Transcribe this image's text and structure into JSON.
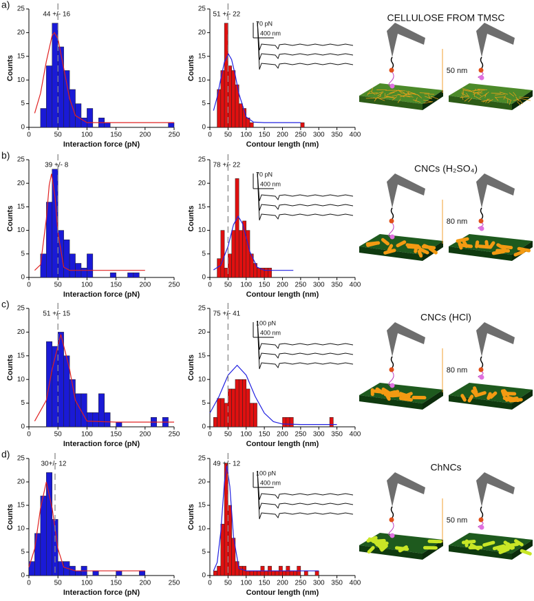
{
  "chart_data": [
    {
      "type": "histogram",
      "ylabel": "Counts",
      "xlabel": "Interaction force (pN)",
      "annotation": "44 +/- 16",
      "color": "#1a1ad6",
      "bins": [
        20,
        30,
        40,
        50,
        60,
        70,
        80,
        90,
        100,
        110,
        120,
        130,
        140,
        150,
        160,
        170,
        180,
        190,
        200,
        210,
        220,
        230,
        240,
        250
      ],
      "values": [
        4,
        13,
        22,
        17,
        12,
        8,
        5,
        2,
        4,
        0,
        2,
        1,
        0,
        0,
        0,
        0,
        0,
        0,
        0,
        0,
        0,
        0,
        1
      ],
      "fit": {
        "color": "#e02020",
        "x": [
          10,
          20,
          30,
          40,
          44,
          50,
          60,
          70,
          80,
          100,
          150,
          200,
          250
        ],
        "values": [
          3.0,
          7.2,
          13.9,
          19.4,
          20,
          18.7,
          12.5,
          6.1,
          2.5,
          1.0,
          1,
          1,
          1
        ]
      },
      "ref_line": 50,
      "xlim": [
        0,
        250
      ],
      "ylim": [
        0,
        25
      ],
      "xticks": [
        0,
        50,
        100,
        150,
        200,
        250
      ],
      "yticks": [
        0,
        5,
        10,
        15,
        20,
        25
      ]
    },
    {
      "type": "histogram",
      "ylabel": "Counts",
      "xlabel": "Contour length (nm)",
      "annotation": "51 +/- 22",
      "color": "#e01010",
      "bins": [
        20,
        30,
        40,
        50,
        60,
        70,
        80,
        90,
        100,
        110,
        120,
        130,
        140,
        150,
        160,
        170,
        180,
        190,
        200,
        210,
        220,
        230,
        240,
        250,
        260
      ],
      "values": [
        8,
        12,
        22,
        13,
        12,
        9,
        5,
        4,
        2,
        1,
        0,
        0,
        0,
        0,
        0,
        0,
        0,
        0,
        0,
        0,
        0,
        0,
        0,
        1
      ],
      "fit": {
        "color": "#2020e0",
        "x": [
          10,
          20,
          30,
          40,
          51,
          60,
          70,
          80,
          100,
          120,
          150,
          200,
          250
        ],
        "values": [
          3.55,
          6.4,
          10.2,
          13.8,
          15.5,
          14.3,
          11,
          7.1,
          2.2,
          1.1,
          1,
          1,
          1
        ]
      },
      "ref_line": 50,
      "xlim": [
        0,
        400
      ],
      "ylim": [
        0,
        25
      ],
      "xticks": [
        0,
        50,
        100,
        150,
        200,
        250,
        300,
        350,
        400
      ],
      "yticks": [
        0,
        5,
        10,
        15,
        20,
        25
      ]
    },
    {
      "type": "histogram",
      "ylabel": "Counts",
      "xlabel": "Interaction force (pN)",
      "annotation": "39 +/- 8",
      "color": "#1a1ad6",
      "bins": [
        20,
        30,
        40,
        50,
        60,
        70,
        80,
        90,
        100,
        110,
        120,
        130,
        140,
        150,
        160,
        170,
        180,
        190
      ],
      "values": [
        5,
        16,
        23,
        10,
        8,
        5,
        3,
        2,
        5,
        0,
        0,
        0,
        1,
        0,
        0,
        1,
        1
      ],
      "fit": {
        "color": "#e02020",
        "x": [
          10,
          20,
          30,
          35,
          39,
          45,
          50,
          60,
          70,
          100,
          150,
          200
        ],
        "values": [
          1.5,
          2.7,
          12.4,
          19.6,
          22,
          17,
          9.5,
          2.2,
          1.5,
          1.5,
          1.5,
          1.5
        ]
      },
      "ref_line": 50,
      "xlim": [
        0,
        250
      ],
      "ylim": [
        0,
        25
      ],
      "xticks": [
        0,
        50,
        100,
        150,
        200,
        250
      ],
      "yticks": [
        0,
        5,
        10,
        15,
        20,
        25
      ]
    },
    {
      "type": "histogram",
      "ylabel": "Counts",
      "xlabel": "Contour length (nm)",
      "annotation": "78 +/- 22",
      "color": "#e01010",
      "bins": [
        20,
        30,
        40,
        50,
        60,
        70,
        80,
        90,
        100,
        110,
        120,
        130,
        140,
        150,
        160,
        170,
        180
      ],
      "values": [
        4,
        10,
        2,
        5,
        10,
        21,
        10,
        12,
        10,
        5,
        3,
        2,
        2,
        2,
        2,
        0
      ],
      "fit": {
        "color": "#2020e0",
        "x": [
          10,
          30,
          50,
          65,
          78,
          90,
          110,
          130,
          150,
          230
        ],
        "values": [
          1.6,
          2.6,
          6.6,
          11.2,
          13,
          11.4,
          5.5,
          2.2,
          1.5,
          1.5
        ]
      },
      "ref_line": 50,
      "xlim": [
        0,
        400
      ],
      "ylim": [
        0,
        25
      ],
      "xticks": [
        0,
        50,
        100,
        150,
        200,
        250,
        300,
        350,
        400
      ],
      "yticks": [
        0,
        5,
        10,
        15,
        20,
        25
      ]
    },
    {
      "type": "histogram",
      "ylabel": "Counts",
      "xlabel": "Interaction force (pN)",
      "annotation": "51 +/- 15",
      "color": "#1a1ad6",
      "bins": [
        30,
        40,
        50,
        60,
        70,
        80,
        90,
        100,
        110,
        120,
        130,
        140,
        150,
        160,
        170,
        180,
        190,
        200,
        210,
        220,
        230,
        240
      ],
      "values": [
        18,
        17,
        20,
        15,
        10,
        7,
        7,
        3,
        3,
        7,
        3,
        0,
        1,
        0,
        0,
        0,
        0,
        0,
        2,
        0,
        2
      ],
      "fit": {
        "color": "#e02020",
        "x": [
          10,
          30,
          40,
          55,
          70,
          80,
          100,
          150,
          200,
          250
        ],
        "values": [
          1.2,
          5.6,
          12.2,
          19.5,
          12.2,
          5.6,
          1.2,
          1,
          1,
          1
        ]
      },
      "ref_line": 50,
      "xlim": [
        0,
        250
      ],
      "ylim": [
        0,
        25
      ],
      "xticks": [
        0,
        50,
        100,
        150,
        200,
        250
      ],
      "yticks": [
        0,
        5,
        10,
        15,
        20,
        25
      ]
    },
    {
      "type": "histogram",
      "ylabel": "Counts",
      "xlabel": "Contour length (nm)",
      "annotation": "75 +/- 41",
      "color": "#e01010",
      "bins": [
        10,
        20,
        30,
        40,
        50,
        60,
        70,
        80,
        90,
        100,
        110,
        120,
        130,
        140,
        150,
        160,
        170,
        180,
        190,
        200,
        210,
        220,
        230,
        240,
        250,
        260,
        270,
        280,
        290,
        300,
        310,
        320,
        330,
        340
      ],
      "values": [
        2,
        6,
        6,
        5,
        8,
        8,
        10,
        10,
        10,
        8,
        5,
        5,
        0,
        0,
        0,
        0,
        0,
        0,
        0,
        2,
        2,
        2,
        0,
        0,
        0,
        0,
        0,
        0,
        0,
        0,
        0,
        0,
        2
      ],
      "fit": {
        "color": "#2020e0",
        "x": [
          0,
          25,
          50,
          75,
          100,
          125,
          150,
          175,
          200,
          250,
          300,
          350
        ],
        "values": [
          2.9,
          6.4,
          10.9,
          13,
          10.9,
          6.4,
          2.9,
          1.1,
          0.6,
          0.5,
          0.5,
          0.5
        ]
      },
      "ref_line": 50,
      "xlim": [
        0,
        400
      ],
      "ylim": [
        0,
        25
      ],
      "xticks": [
        0,
        50,
        100,
        150,
        200,
        250,
        300,
        350,
        400
      ],
      "yticks": [
        0,
        5,
        10,
        15,
        20,
        25
      ]
    },
    {
      "type": "histogram",
      "ylabel": "Counts",
      "xlabel": "Interaction force (pN)",
      "annotation": "30+/- 12",
      "color": "#1a1ad6",
      "bins": [
        0,
        10,
        20,
        30,
        40,
        50,
        60,
        70,
        80,
        90,
        100,
        110,
        120,
        130,
        140,
        150,
        160,
        170,
        180,
        190,
        200
      ],
      "values": [
        3,
        9,
        17,
        22,
        12,
        3,
        3,
        2,
        1,
        2,
        0,
        1,
        0,
        0,
        0,
        1,
        0,
        0,
        0,
        1
      ],
      "fit": {
        "color": "#e02020",
        "x": [
          0,
          10,
          20,
          30,
          40,
          50,
          60,
          80,
          150,
          200
        ],
        "values": [
          1.8,
          5.7,
          14.4,
          20,
          14.4,
          5.7,
          1.8,
          1,
          1,
          1
        ]
      },
      "ref_line": 45,
      "xlim": [
        0,
        250
      ],
      "ylim": [
        0,
        25
      ],
      "xticks": [
        0,
        50,
        100,
        150,
        200,
        250
      ],
      "yticks": [
        0,
        5,
        10,
        15,
        20,
        25
      ]
    },
    {
      "type": "histogram",
      "ylabel": "Counts",
      "xlabel": "Contour length (nm)",
      "annotation": "49 +/- 12",
      "color": "#e01010",
      "bins": [
        10,
        20,
        30,
        40,
        50,
        60,
        70,
        80,
        90,
        100,
        110,
        120,
        130,
        140,
        150,
        160,
        170,
        180,
        190,
        200,
        210,
        220,
        230,
        240,
        250,
        260,
        270,
        280,
        290,
        300
      ],
      "values": [
        1,
        2,
        11,
        24,
        15,
        8,
        3,
        2,
        2,
        1,
        1,
        1,
        1,
        2,
        1,
        2,
        1,
        1,
        2,
        1,
        2,
        1,
        1,
        2,
        0,
        1,
        0,
        0,
        1
      ],
      "fit": {
        "color": "#2020e0",
        "x": [
          10,
          20,
          30,
          40,
          47,
          55,
          65,
          80,
          100,
          200,
          300
        ],
        "values": [
          1,
          2.8,
          9.3,
          19.9,
          23.5,
          19,
          8.3,
          1.5,
          1,
          1,
          1
        ]
      },
      "ref_line": 50,
      "xlim": [
        0,
        400
      ],
      "ylim": [
        0,
        25
      ],
      "xticks": [
        0,
        50,
        100,
        150,
        200,
        250,
        300,
        350,
        400
      ],
      "yticks": [
        0,
        5,
        10,
        15,
        20,
        25
      ]
    }
  ],
  "panels": [
    {
      "label": "a)",
      "inset_force": "70 pN",
      "inset_length": "400 nm",
      "schematic_title": "CELLULOSE FROM TMSC",
      "distance": "50 nm"
    },
    {
      "label": "b)",
      "inset_force": "70 pN",
      "inset_length": "400 nm",
      "schematic_title": "CNCs (H₂SO₄)",
      "distance": "80 nm"
    },
    {
      "label": "c)",
      "inset_force": "100 pN",
      "inset_length": "400 nm",
      "schematic_title": "CNCs (HCl)",
      "distance": "80 nm"
    },
    {
      "label": "d)",
      "inset_force": "100 pN",
      "inset_length": "400 nm",
      "schematic_title": "ChNCs",
      "distance": "50 nm"
    }
  ]
}
